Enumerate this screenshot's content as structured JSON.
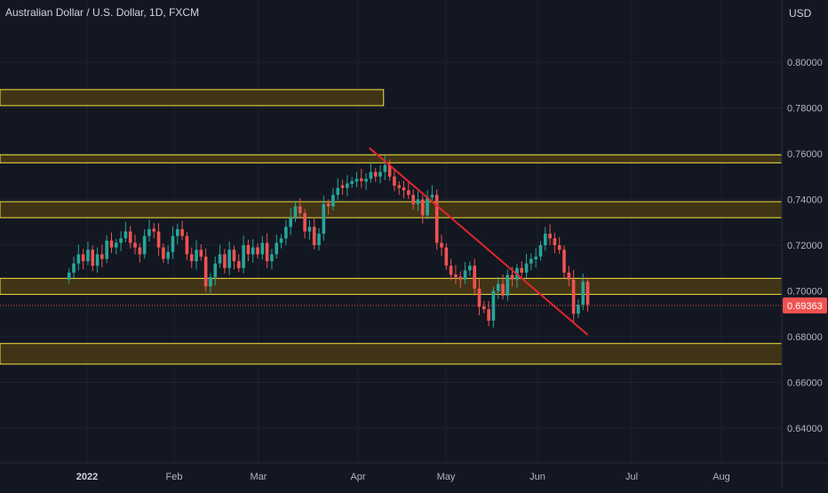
{
  "header": {
    "title": "Australian Dollar / U.S. Dollar, 1D, FXCM",
    "currency": "USD"
  },
  "colors": {
    "background": "#131722",
    "grid": "#1e222d",
    "text": "#b2b5be",
    "up": "#26a69a",
    "down": "#ef5350",
    "zone_fill": "#4a3a14",
    "zone_border": "#f5e342",
    "trendline": "#e0262c",
    "last_price_label": "#ef5350"
  },
  "chart_data": {
    "type": "candlestick",
    "title": "Australian Dollar / U.S. Dollar, 1D, FXCM",
    "symbol": "AUDUSD",
    "y_unit": "USD",
    "ylim": [
      0.625,
      0.83
    ],
    "y_ticks": [
      "0.80000",
      "0.78000",
      "0.76000",
      "0.74000",
      "0.72000",
      "0.70000",
      "0.68000",
      "0.66000",
      "0.64000"
    ],
    "y_tick_values": [
      0.8,
      0.78,
      0.76,
      0.74,
      0.72,
      0.7,
      0.68,
      0.66,
      0.64
    ],
    "x_ticks": [
      {
        "label": "2022",
        "date": "2022-01-03"
      },
      {
        "label": "Feb",
        "date": "2022-02-01"
      },
      {
        "label": "Mar",
        "date": "2022-03-01"
      },
      {
        "label": "Apr",
        "date": "2022-04-01"
      },
      {
        "label": "May",
        "date": "2022-05-02"
      },
      {
        "label": "Jun",
        "date": "2022-06-01"
      },
      {
        "label": "Jul",
        "date": "2022-07-01"
      },
      {
        "label": "Aug",
        "date": "2022-08-01"
      }
    ],
    "grid": true,
    "last_price": 0.69363,
    "last_price_label": "0.69363",
    "zones": [
      {
        "top": 0.788,
        "bottom": 0.781,
        "end_date": "2022-04-10"
      },
      {
        "top": 0.7595,
        "bottom": 0.756
      },
      {
        "top": 0.739,
        "bottom": 0.732
      },
      {
        "top": 0.7055,
        "bottom": 0.6985
      },
      {
        "top": 0.677,
        "bottom": 0.668
      }
    ],
    "trendline": {
      "start": {
        "date": "2022-04-05",
        "price": 0.7625
      },
      "end": {
        "date": "2022-06-17",
        "price": 0.6808
      }
    },
    "closes": [
      0.708,
      0.712,
      0.716,
      0.713,
      0.718,
      0.711,
      0.716,
      0.714,
      0.722,
      0.719,
      0.721,
      0.723,
      0.726,
      0.721,
      0.719,
      0.716,
      0.724,
      0.727,
      0.726,
      0.719,
      0.714,
      0.717,
      0.724,
      0.727,
      0.724,
      0.716,
      0.713,
      0.718,
      0.715,
      0.702,
      0.706,
      0.712,
      0.716,
      0.71,
      0.718,
      0.713,
      0.71,
      0.72,
      0.716,
      0.719,
      0.716,
      0.721,
      0.713,
      0.716,
      0.721,
      0.723,
      0.728,
      0.732,
      0.737,
      0.734,
      0.726,
      0.728,
      0.72,
      0.725,
      0.738,
      0.737,
      0.742,
      0.745,
      0.745,
      0.747,
      0.748,
      0.749,
      0.748,
      0.749,
      0.752,
      0.75,
      0.752,
      0.755,
      0.75,
      0.746,
      0.745,
      0.744,
      0.742,
      0.738,
      0.74,
      0.733,
      0.741,
      0.742,
      0.721,
      0.719,
      0.711,
      0.707,
      0.706,
      0.705,
      0.709,
      0.711,
      0.701,
      0.693,
      0.692,
      0.687,
      0.7,
      0.703,
      0.698,
      0.707,
      0.705,
      0.71,
      0.708,
      0.712,
      0.714,
      0.715,
      0.72,
      0.725,
      0.723,
      0.72,
      0.718,
      0.708,
      0.705,
      0.69,
      0.694,
      0.704,
      0.694
    ],
    "candle_colors": [
      "up",
      "up",
      "up",
      "down",
      "up",
      "down",
      "up",
      "down",
      "up",
      "down",
      "up",
      "up",
      "up",
      "down",
      "down",
      "down",
      "up",
      "up",
      "down",
      "down",
      "down",
      "up",
      "up",
      "up",
      "down",
      "down",
      "down",
      "up",
      "down",
      "down",
      "up",
      "up",
      "up",
      "down",
      "up",
      "down",
      "down",
      "up",
      "down",
      "up",
      "down",
      "up",
      "down",
      "up",
      "up",
      "up",
      "up",
      "up",
      "up",
      "down",
      "down",
      "up",
      "down",
      "up",
      "up",
      "down",
      "up",
      "up",
      "down",
      "up",
      "up",
      "up",
      "down",
      "up",
      "up",
      "down",
      "up",
      "up",
      "down",
      "down",
      "down",
      "down",
      "down",
      "down",
      "up",
      "down",
      "up",
      "up",
      "down",
      "down",
      "down",
      "down",
      "down",
      "down",
      "up",
      "up",
      "down",
      "down",
      "down",
      "down",
      "up",
      "up",
      "down",
      "up",
      "down",
      "up",
      "down",
      "up",
      "up",
      "up",
      "up",
      "up",
      "down",
      "down",
      "down",
      "down",
      "down",
      "down",
      "up",
      "up",
      "down"
    ]
  }
}
